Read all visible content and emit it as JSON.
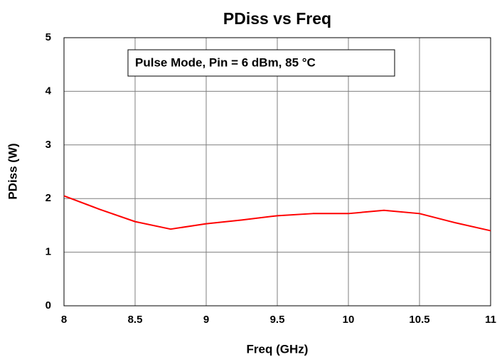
{
  "chart_data": {
    "type": "line",
    "title": "PDiss vs Freq",
    "xlabel": "Freq (GHz)",
    "ylabel": "PDiss (W)",
    "annotation": "Pulse Mode, Pin = 6 dBm, 85 °C",
    "x": [
      8,
      8.25,
      8.5,
      8.75,
      9,
      9.25,
      9.5,
      9.75,
      10,
      10.25,
      10.5,
      10.75,
      11
    ],
    "series": [
      {
        "name": "PDiss",
        "color": "#ff0000",
        "values": [
          2.05,
          1.8,
          1.57,
          1.43,
          1.53,
          1.6,
          1.68,
          1.72,
          1.72,
          1.78,
          1.72,
          1.55,
          1.4
        ]
      }
    ],
    "xlim": [
      8,
      11
    ],
    "xticks": [
      8,
      8.5,
      9,
      9.5,
      10,
      10.5,
      11
    ],
    "ylim": [
      0,
      5
    ],
    "yticks": [
      0,
      1,
      2,
      3,
      4,
      5
    ],
    "grid": true
  }
}
